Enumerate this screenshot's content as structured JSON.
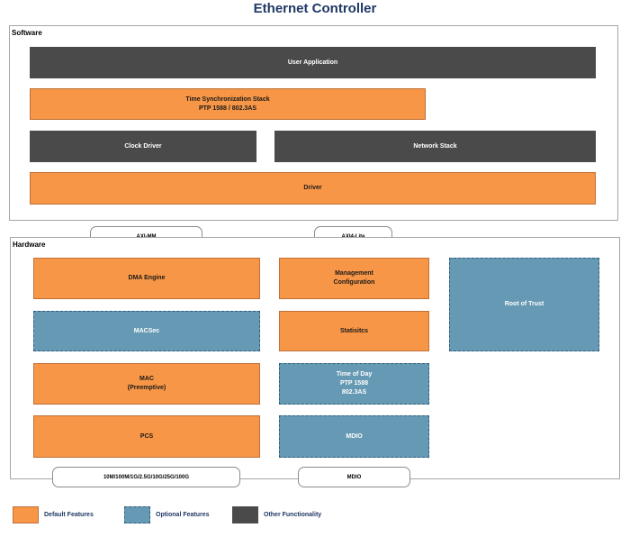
{
  "title": "Ethernet Controller",
  "software": {
    "label": "Software",
    "user_application": "User Application",
    "time_sync_stack": "Time Synchronization Stack\nPTP 1588 / 802.3AS",
    "clock_driver": "Clock Driver",
    "network_stack": "Network Stack",
    "driver": "Driver"
  },
  "interfaces": {
    "axi_mm": "AXI-MM",
    "axi4_lite": "AXI4-Lite",
    "speeds": "10M/100M/1G/2.5G/10G/25G/100G",
    "mdio": "MDIO"
  },
  "hardware": {
    "label": "Hardware",
    "dma_engine": "DMA Engine",
    "management_configuration": "Management\nConfiguration",
    "root_of_trust": "Root of Trust",
    "macsec": "MACSec",
    "statistics": "Statisitcs",
    "mac": "MAC\n(Preemptive)",
    "time_of_day": "Time of Day\nPTP 1588\n802.3AS",
    "pcs": "PCS",
    "mdio": "MDIO"
  },
  "legend": {
    "default_features": "Default Features",
    "optional_features": "Optional Features",
    "other_functionality": "Other Functionality"
  },
  "colors": {
    "default": "#f79646",
    "optional": "#6699b3",
    "other": "#4a4a4a",
    "title": "#1f3864"
  }
}
